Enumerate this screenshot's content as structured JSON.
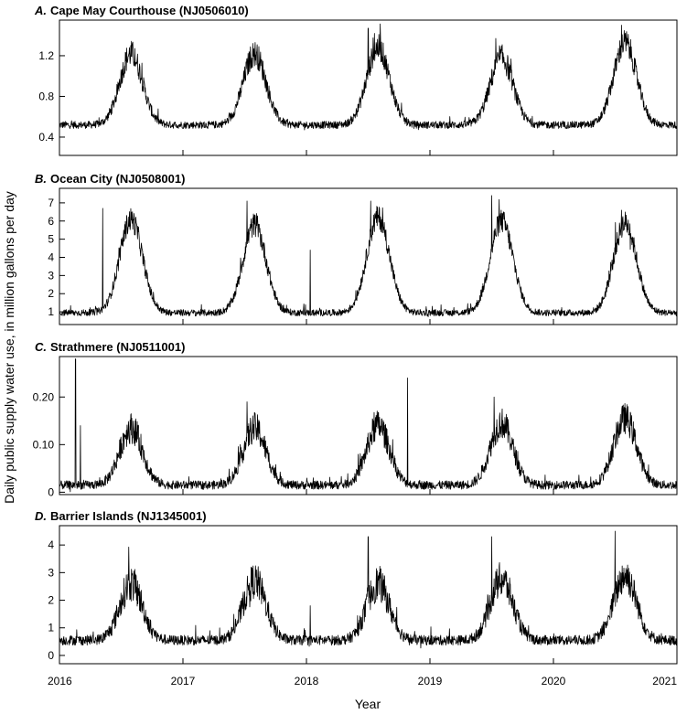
{
  "chart_data": {
    "type": "line",
    "xlabel": "Year",
    "ylabel": "Daily public supply water use, in million gallons per day",
    "x_tick_labels": [
      "2016",
      "2017",
      "2018",
      "2019",
      "2020",
      "2021"
    ],
    "xlim": [
      2016,
      2021
    ],
    "panels": [
      {
        "id": "A",
        "title_letter": "A.",
        "title_text": "Cape May Courthouse (NJ0506010)",
        "ylim": [
          0.22,
          1.55
        ],
        "yticks": [
          0.4,
          0.8,
          1.2
        ],
        "ytick_labels": [
          "0.4",
          "0.8",
          "1.2"
        ],
        "profile": {
          "base": 0.52,
          "peaks": [
            1.22,
            1.22,
            1.28,
            1.18,
            1.33
          ],
          "spikes": [
            [
              2018.5,
              1.47
            ],
            [
              2020.55,
              1.5
            ],
            [
              2018.55,
              1.42
            ]
          ],
          "noise": 0.06
        },
        "series": [
          {
            "name": "Cape May Courthouse daily use",
            "x": [
              2016.0,
              2016.2,
              2016.4,
              2016.55,
              2016.7,
              2016.9,
              2017.1,
              2017.35,
              2017.5,
              2017.6,
              2017.75,
              2017.95,
              2018.1,
              2018.35,
              2018.5,
              2018.6,
              2018.75,
              2018.95,
              2019.1,
              2019.35,
              2019.5,
              2019.6,
              2019.75,
              2019.95,
              2020.1,
              2020.35,
              2020.5,
              2020.6,
              2020.75,
              2020.95,
              2021.0
            ],
            "y": [
              0.52,
              0.55,
              0.9,
              1.2,
              1.1,
              0.6,
              0.5,
              0.6,
              1.25,
              1.1,
              0.85,
              0.55,
              0.52,
              0.6,
              1.3,
              1.2,
              0.9,
              0.55,
              0.52,
              0.6,
              1.2,
              1.1,
              0.9,
              0.5,
              0.48,
              0.6,
              1.35,
              1.2,
              0.8,
              0.5,
              0.45
            ]
          }
        ]
      },
      {
        "id": "B",
        "title_letter": "B.",
        "title_text": "Ocean City (NJ0508001)",
        "ylim": [
          0.3,
          7.8
        ],
        "yticks": [
          1,
          2,
          3,
          4,
          5,
          6,
          7
        ],
        "ytick_labels": [
          "1",
          "2",
          "3",
          "4",
          "5",
          "6",
          "7"
        ],
        "profile": {
          "base": 0.95,
          "peaks": [
            6.1,
            5.8,
            6.2,
            6.0,
            5.9
          ],
          "spikes": [
            [
              2016.35,
              6.7
            ],
            [
              2017.52,
              7.1
            ],
            [
              2018.03,
              4.4
            ],
            [
              2018.52,
              7.1
            ],
            [
              2019.5,
              7.4
            ],
            [
              2020.55,
              6.6
            ]
          ],
          "noise": 0.3
        },
        "series": [
          {
            "name": "Ocean City daily use",
            "x": [
              2016.0,
              2016.3,
              2016.45,
              2016.6,
              2016.75,
              2016.95,
              2017.3,
              2017.45,
              2017.6,
              2017.75,
              2017.95,
              2018.03,
              2018.3,
              2018.5,
              2018.65,
              2018.8,
              2019.0,
              2019.3,
              2019.5,
              2019.65,
              2019.8,
              2020.0,
              2020.3,
              2020.5,
              2020.65,
              2020.8,
              2021.0
            ],
            "y": [
              1.0,
              1.5,
              5.0,
              6.2,
              4.0,
              1.1,
              1.2,
              4.5,
              6.0,
              3.0,
              1.0,
              4.4,
              1.2,
              6.5,
              5.5,
              2.0,
              1.0,
              1.2,
              6.8,
              5.5,
              2.0,
              0.9,
              1.5,
              6.0,
              5.0,
              2.0,
              1.0
            ]
          }
        ]
      },
      {
        "id": "C",
        "title_letter": "C.",
        "title_text": "Strathmere (NJ0511001)",
        "ylim": [
          -0.005,
          0.285
        ],
        "yticks": [
          0,
          0.1,
          0.2
        ],
        "ytick_labels": [
          "0",
          "0.10",
          "0.20"
        ],
        "profile": {
          "base": 0.015,
          "peaks": [
            0.135,
            0.135,
            0.14,
            0.145,
            0.155
          ],
          "spikes": [
            [
              2016.13,
              0.28
            ],
            [
              2016.17,
              0.14
            ],
            [
              2017.52,
              0.19
            ],
            [
              2018.82,
              0.24
            ],
            [
              2019.52,
              0.2
            ]
          ],
          "noise": 0.015
        },
        "series": [
          {
            "name": "Strathmere daily use",
            "x": [
              2016.0,
              2016.13,
              2016.3,
              2016.55,
              2016.8,
              2017.0,
              2017.35,
              2017.55,
              2017.8,
              2018.0,
              2018.3,
              2018.55,
              2018.82,
              2019.0,
              2019.35,
              2019.55,
              2019.8,
              2020.0,
              2020.35,
              2020.55,
              2020.8,
              2021.0
            ],
            "y": [
              0.02,
              0.28,
              0.05,
              0.13,
              0.06,
              0.02,
              0.05,
              0.14,
              0.06,
              0.02,
              0.05,
              0.15,
              0.24,
              0.02,
              0.05,
              0.16,
              0.06,
              0.01,
              0.05,
              0.16,
              0.06,
              0.02
            ]
          }
        ]
      },
      {
        "id": "D",
        "title_letter": "D.",
        "title_text": "Barrier Islands (NJ1345001)",
        "ylim": [
          -0.3,
          4.7
        ],
        "yticks": [
          0,
          1,
          2,
          3,
          4
        ],
        "ytick_labels": [
          "0",
          "1",
          "2",
          "3",
          "4"
        ],
        "profile": {
          "base": 0.55,
          "peaks": [
            2.6,
            2.7,
            2.6,
            2.75,
            2.9
          ],
          "spikes": [
            [
              2018.5,
              4.3
            ],
            [
              2019.5,
              4.3
            ],
            [
              2020.5,
              4.5
            ],
            [
              2018.03,
              1.8
            ]
          ],
          "noise": 0.3
        },
        "series": [
          {
            "name": "Barrier Islands daily use",
            "x": [
              2016.0,
              2016.3,
              2016.5,
              2016.65,
              2016.8,
              2017.0,
              2017.3,
              2017.5,
              2017.65,
              2017.8,
              2018.0,
              2018.3,
              2018.5,
              2018.65,
              2018.8,
              2019.0,
              2019.3,
              2019.5,
              2019.65,
              2019.8,
              2020.0,
              2020.3,
              2020.55,
              2020.7,
              2020.85,
              2021.0
            ],
            "y": [
              0.55,
              0.8,
              2.6,
              2.8,
              0.5,
              0.5,
              0.8,
              2.7,
              2.5,
              1.0,
              0.6,
              0.8,
              2.8,
              2.5,
              1.0,
              0.5,
              0.8,
              3.0,
              2.6,
              1.0,
              0.5,
              0.9,
              3.0,
              2.8,
              1.2,
              0.6
            ]
          }
        ]
      }
    ]
  }
}
